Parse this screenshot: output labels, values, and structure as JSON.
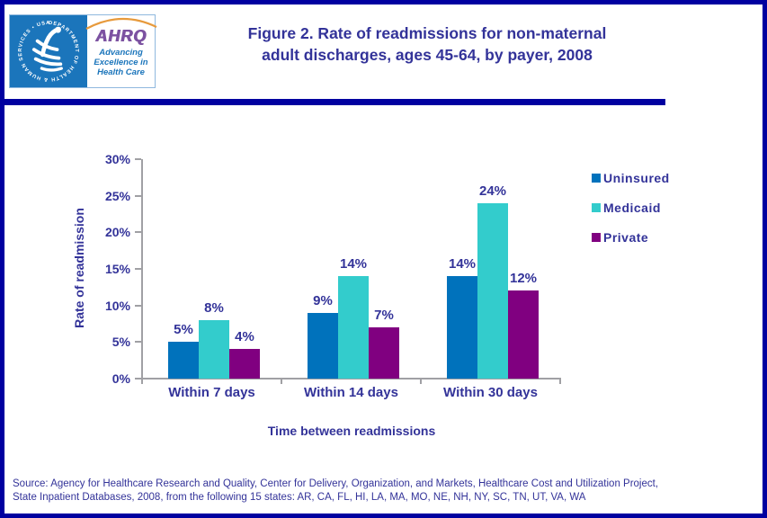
{
  "header": {
    "logo": {
      "seal_text": "DEPARTMENT OF HEALTH & HUMAN SERVICES • USA",
      "acronym": "AHRQ",
      "tagline": "Advancing Excellence in Health Care"
    },
    "title_line1": "Figure 2. Rate of readmissions for non-maternal",
    "title_line2": "adult discharges, ages 45-64, by payer, 2008"
  },
  "chart_data": {
    "type": "bar",
    "title": "Figure 2. Rate of readmissions for non-maternal adult discharges, ages 45-64, by payer, 2008",
    "categories": [
      "Within 7 days",
      "Within 14 days",
      "Within 30 days"
    ],
    "series": [
      {
        "name": "Uninsured",
        "color": "#0072BC",
        "values": [
          5,
          9,
          14
        ]
      },
      {
        "name": "Medicaid",
        "color": "#33CCCC",
        "values": [
          8,
          14,
          24
        ]
      },
      {
        "name": "Private",
        "color": "#800080",
        "values": [
          4,
          7,
          12
        ]
      }
    ],
    "value_labels": [
      [
        "5%",
        "9%",
        "14%"
      ],
      [
        "8%",
        "14%",
        "24%"
      ],
      [
        "4%",
        "7%",
        "12%"
      ]
    ],
    "yticks": [
      "0%",
      "5%",
      "10%",
      "15%",
      "20%",
      "25%",
      "30%"
    ],
    "ylim": [
      0,
      30
    ],
    "ytick_step": 5,
    "value_suffix": "%",
    "xlabel": "Time between readmissions",
    "ylabel": "Rate of readmission",
    "grid": false,
    "legend_position": "right"
  },
  "source": {
    "line1": "Source: Agency for Healthcare Research and Quality, Center for Delivery, Organization, and Markets, Healthcare Cost and Utilization Project,",
    "line2": "State Inpatient Databases, 2008, from the following 15 states: AR, CA, FL, HI, LA, MA, MO, NE, NH, NY, SC, TN, UT, VA, WA"
  },
  "colors": {
    "border_navy": "#0000A0",
    "text_navy": "#333399",
    "axis_gray": "#A0A0A4",
    "uninsured_blue": "#0072BC",
    "medicaid_teal": "#33CCCC",
    "private_purple": "#800080",
    "logo_blue": "#1B75BB",
    "ahrq_purple": "#7C52A1",
    "swoosh_orange": "#E79A3C"
  }
}
